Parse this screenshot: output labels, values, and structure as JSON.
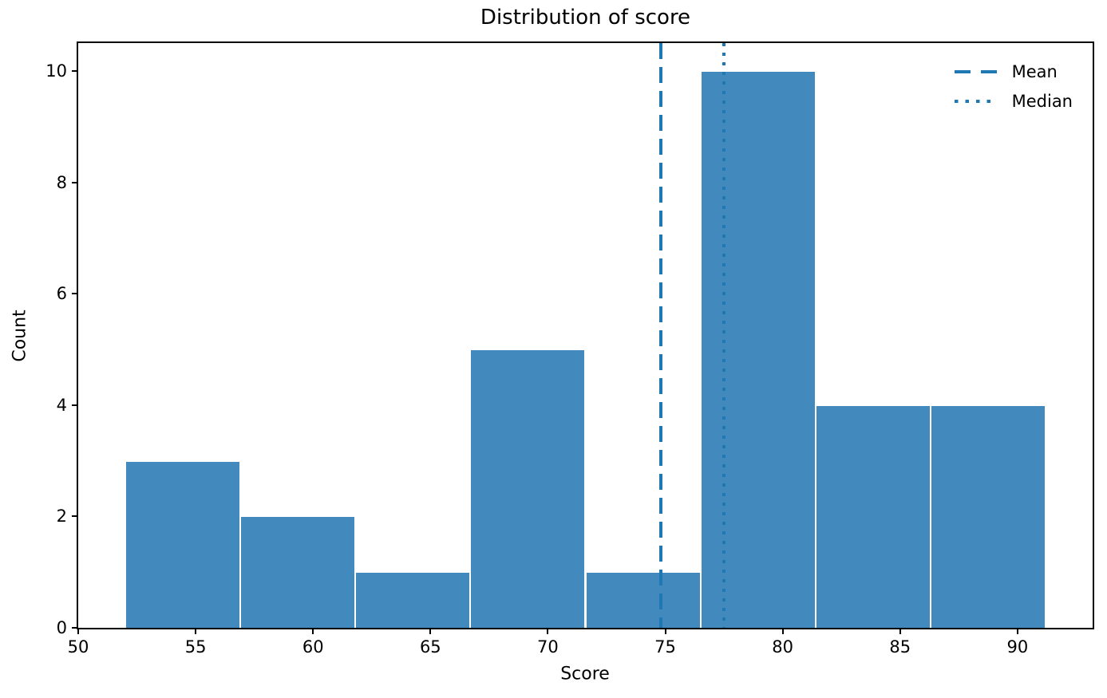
{
  "chart_data": {
    "type": "bar",
    "subtype": "histogram",
    "title": "Distribution of score",
    "xlabel": "Score",
    "ylabel": "Count",
    "bin_edges": [
      52.0,
      56.9,
      61.8,
      66.7,
      71.6,
      76.5,
      81.4,
      86.3,
      91.2
    ],
    "counts": [
      3,
      2,
      1,
      5,
      1,
      10,
      4,
      4
    ],
    "xticks": [
      50,
      55,
      60,
      65,
      70,
      75,
      80,
      85,
      90
    ],
    "yticks": [
      0,
      2,
      4,
      6,
      8,
      10
    ],
    "xlim": [
      50.0,
      93.2
    ],
    "ylim": [
      0,
      10.5
    ],
    "grid": false,
    "legend_position": "upper right",
    "vlines": [
      {
        "label": "Mean",
        "x": 74.8,
        "style": "dashed"
      },
      {
        "label": "Median",
        "x": 77.5,
        "style": "dotted"
      }
    ],
    "colors": {
      "bar_fill": "#428abe",
      "bar_edge": "#ffffff",
      "vline": "#1f77b4",
      "spine": "#000000",
      "text": "#000000"
    }
  },
  "legend": {
    "items": [
      {
        "label": "Mean",
        "style": "dashed"
      },
      {
        "label": "Median",
        "style": "dotted"
      }
    ]
  }
}
